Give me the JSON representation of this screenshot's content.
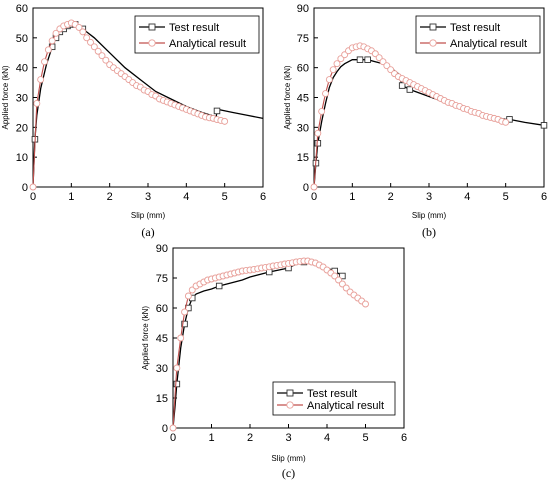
{
  "colors": {
    "test": "#000000",
    "analytical": "#c0504d",
    "analytical_marker_stroke": "#e8a09a",
    "test_marker_stroke": "#333333",
    "axis": "#000000"
  },
  "chart_data": [
    {
      "panel_label": "(a)",
      "type": "line",
      "xlabel": "Slip (mm)",
      "ylabel": "Applied force (kN)",
      "xlim": [
        0,
        6
      ],
      "ylim": [
        0,
        60
      ],
      "xticks": [
        "0",
        "1",
        "2",
        "3",
        "4",
        "5",
        "6"
      ],
      "yticks": [
        "0",
        "10",
        "20",
        "30",
        "40",
        "50",
        "60"
      ],
      "grid": false,
      "legend_position": "top-right",
      "series": [
        {
          "name": "Test result",
          "marker": "square",
          "x": [
            0,
            0.05,
            0.1,
            0.2,
            0.35,
            0.5,
            0.6,
            0.7,
            0.8,
            0.9,
            1.0,
            1.1,
            1.2,
            1.3,
            1.6,
            2.0,
            2.4,
            2.8,
            3.2,
            3.6,
            4.0,
            4.4,
            4.78,
            4.8,
            4.82,
            5.2,
            5.6,
            6.0
          ],
          "y": [
            0,
            16,
            24,
            33,
            41,
            47,
            50,
            52,
            53,
            54,
            54.5,
            54.5,
            53.5,
            53,
            50,
            45,
            40,
            36,
            32,
            29.5,
            27,
            25,
            23.5,
            25.5,
            26,
            25,
            24,
            23
          ],
          "markers": [
            [
              0.05,
              16
            ],
            [
              0.5,
              47
            ],
            [
              0.6,
              50
            ],
            [
              0.7,
              52
            ],
            [
              0.8,
              53
            ],
            [
              0.9,
              54
            ],
            [
              1.0,
              54.5
            ],
            [
              1.1,
              54.5
            ],
            [
              1.3,
              53
            ],
            [
              4.8,
              25.5
            ]
          ]
        },
        {
          "name": "Analytical result",
          "marker": "circle",
          "x": [
            0,
            0.1,
            0.2,
            0.3,
            0.4,
            0.5,
            0.6,
            0.7,
            0.8,
            0.9,
            1.0,
            1.1,
            1.2,
            1.3,
            1.4,
            1.5,
            1.6,
            1.7,
            1.8,
            1.9,
            2.0,
            2.1,
            2.2,
            2.3,
            2.4,
            2.5,
            2.6,
            2.7,
            2.8,
            2.9,
            3.0,
            3.1,
            3.2,
            3.3,
            3.4,
            3.5,
            3.6,
            3.7,
            3.8,
            3.9,
            4.0,
            4.1,
            4.2,
            4.3,
            4.4,
            4.5,
            4.6,
            4.7,
            4.8,
            4.9,
            5.0
          ],
          "y": [
            0,
            28,
            36,
            42,
            46,
            49,
            51.5,
            53,
            54,
            54.5,
            55,
            54.5,
            53.5,
            52,
            50,
            48.5,
            47,
            45.5,
            44,
            42.5,
            41,
            40,
            39,
            38,
            37,
            36,
            35,
            34,
            33.5,
            32.5,
            32,
            31,
            30.5,
            29.5,
            29,
            28.5,
            28,
            27.5,
            27,
            26.5,
            26,
            25.5,
            25,
            24.5,
            24,
            23.5,
            23.2,
            23,
            22.6,
            22.3,
            22
          ]
        }
      ]
    },
    {
      "panel_label": "(b)",
      "type": "line",
      "xlabel": "Slip (mm)",
      "ylabel": "Applied force (kN)",
      "xlim": [
        0,
        6
      ],
      "ylim": [
        0,
        90
      ],
      "xticks": [
        "0",
        "1",
        "2",
        "3",
        "4",
        "5",
        "6"
      ],
      "yticks": [
        "0",
        "15",
        "30",
        "45",
        "60",
        "75",
        "90"
      ],
      "grid": false,
      "legend_position": "top-right",
      "series": [
        {
          "name": "Test result",
          "marker": "square",
          "x": [
            0,
            0.05,
            0.1,
            0.2,
            0.3,
            0.4,
            0.5,
            0.6,
            0.7,
            0.8,
            0.9,
            1.0,
            1.2,
            1.4,
            1.6,
            1.8,
            2.0,
            2.2,
            2.3,
            2.5,
            3.0,
            3.5,
            4.0,
            4.5,
            5.0,
            5.1,
            5.5,
            6.0
          ],
          "y": [
            0,
            12,
            22,
            33,
            42,
            50,
            55,
            58,
            60.5,
            62,
            63,
            64,
            64,
            64,
            63,
            62,
            60,
            57,
            51,
            49,
            45.5,
            42,
            38.5,
            36,
            34,
            34,
            32.5,
            31
          ],
          "markers": [
            [
              0.05,
              12
            ],
            [
              0.1,
              22
            ],
            [
              1.2,
              64
            ],
            [
              1.4,
              64
            ],
            [
              2.3,
              51
            ],
            [
              2.5,
              49
            ],
            [
              5.1,
              34
            ],
            [
              6.0,
              31
            ]
          ]
        },
        {
          "name": "Analytical result",
          "marker": "circle",
          "x": [
            0,
            0.1,
            0.2,
            0.3,
            0.4,
            0.5,
            0.6,
            0.7,
            0.8,
            0.9,
            1.0,
            1.1,
            1.2,
            1.3,
            1.4,
            1.5,
            1.6,
            1.7,
            1.8,
            1.9,
            2.0,
            2.1,
            2.2,
            2.3,
            2.4,
            2.5,
            2.6,
            2.7,
            2.8,
            2.9,
            3.0,
            3.1,
            3.2,
            3.3,
            3.4,
            3.5,
            3.6,
            3.7,
            3.8,
            3.9,
            4.0,
            4.1,
            4.2,
            4.3,
            4.4,
            4.5,
            4.6,
            4.7,
            4.8,
            4.9,
            5.0
          ],
          "y": [
            0,
            27,
            38,
            47,
            54,
            59,
            62,
            64.5,
            66.5,
            68.5,
            70,
            70.5,
            71,
            70.5,
            69.5,
            68.5,
            67,
            65,
            63,
            61,
            59,
            57,
            55.5,
            54.5,
            53.5,
            52.5,
            51.5,
            50.5,
            49.5,
            48.5,
            47.5,
            46.5,
            45.5,
            44.5,
            43.5,
            42.5,
            42,
            41,
            40.5,
            39.5,
            39,
            38,
            37.5,
            37,
            36,
            35.5,
            35,
            34.5,
            34,
            33,
            32.5
          ]
        }
      ]
    },
    {
      "panel_label": "(c)",
      "type": "line",
      "xlabel": "Slip (mm)",
      "ylabel": "Applied force (kN)",
      "xlim": [
        0,
        6
      ],
      "ylim": [
        0,
        90
      ],
      "xticks": [
        "0",
        "1",
        "2",
        "3",
        "4",
        "5",
        "6"
      ],
      "yticks": [
        "0",
        "15",
        "30",
        "45",
        "60",
        "75",
        "90"
      ],
      "grid": false,
      "legend_position": "bottom-right",
      "series": [
        {
          "name": "Test result",
          "marker": "square",
          "x": [
            0,
            0.05,
            0.1,
            0.2,
            0.3,
            0.4,
            0.5,
            0.6,
            0.8,
            1.0,
            1.2,
            1.5,
            1.8,
            2.0,
            2.5,
            3.0,
            3.2,
            3.4,
            3.6,
            3.8,
            4.0,
            4.2,
            4.4
          ],
          "y": [
            0,
            10,
            22,
            40,
            52,
            60,
            65,
            67,
            68.5,
            69.5,
            71,
            72.5,
            74,
            75.5,
            78,
            80,
            82,
            83,
            83,
            82,
            80,
            78.5,
            76
          ],
          "markers": [
            [
              0.1,
              22
            ],
            [
              0.3,
              52
            ],
            [
              0.4,
              60
            ],
            [
              0.5,
              65
            ],
            [
              1.2,
              71
            ],
            [
              2.5,
              78
            ],
            [
              3.0,
              80
            ],
            [
              3.4,
              83
            ],
            [
              4.2,
              78.5
            ],
            [
              4.4,
              76
            ]
          ]
        },
        {
          "name": "Analytical result",
          "marker": "circle",
          "x": [
            0,
            0.1,
            0.2,
            0.3,
            0.4,
            0.5,
            0.6,
            0.7,
            0.8,
            0.9,
            1.0,
            1.1,
            1.2,
            1.3,
            1.4,
            1.5,
            1.6,
            1.7,
            1.8,
            1.9,
            2.0,
            2.1,
            2.2,
            2.3,
            2.4,
            2.5,
            2.6,
            2.7,
            2.8,
            2.9,
            3.0,
            3.1,
            3.2,
            3.3,
            3.4,
            3.5,
            3.6,
            3.7,
            3.8,
            3.9,
            4.0,
            4.1,
            4.2,
            4.3,
            4.4,
            4.5,
            4.6,
            4.7,
            4.8,
            4.9,
            5.0
          ],
          "y": [
            0,
            30,
            45,
            58,
            66,
            69,
            71,
            72,
            73,
            74,
            74.5,
            75,
            75.5,
            76,
            76.5,
            77,
            77.5,
            78,
            78.5,
            78.8,
            79,
            79.3,
            79.6,
            80,
            80.3,
            80.6,
            81,
            81.3,
            81.6,
            82,
            82.3,
            82.6,
            83,
            83.3,
            83.5,
            83.5,
            83,
            82.5,
            81.5,
            80.5,
            79,
            77.5,
            76,
            74,
            72,
            70,
            68,
            66.5,
            65,
            63.5,
            62
          ]
        }
      ]
    }
  ]
}
